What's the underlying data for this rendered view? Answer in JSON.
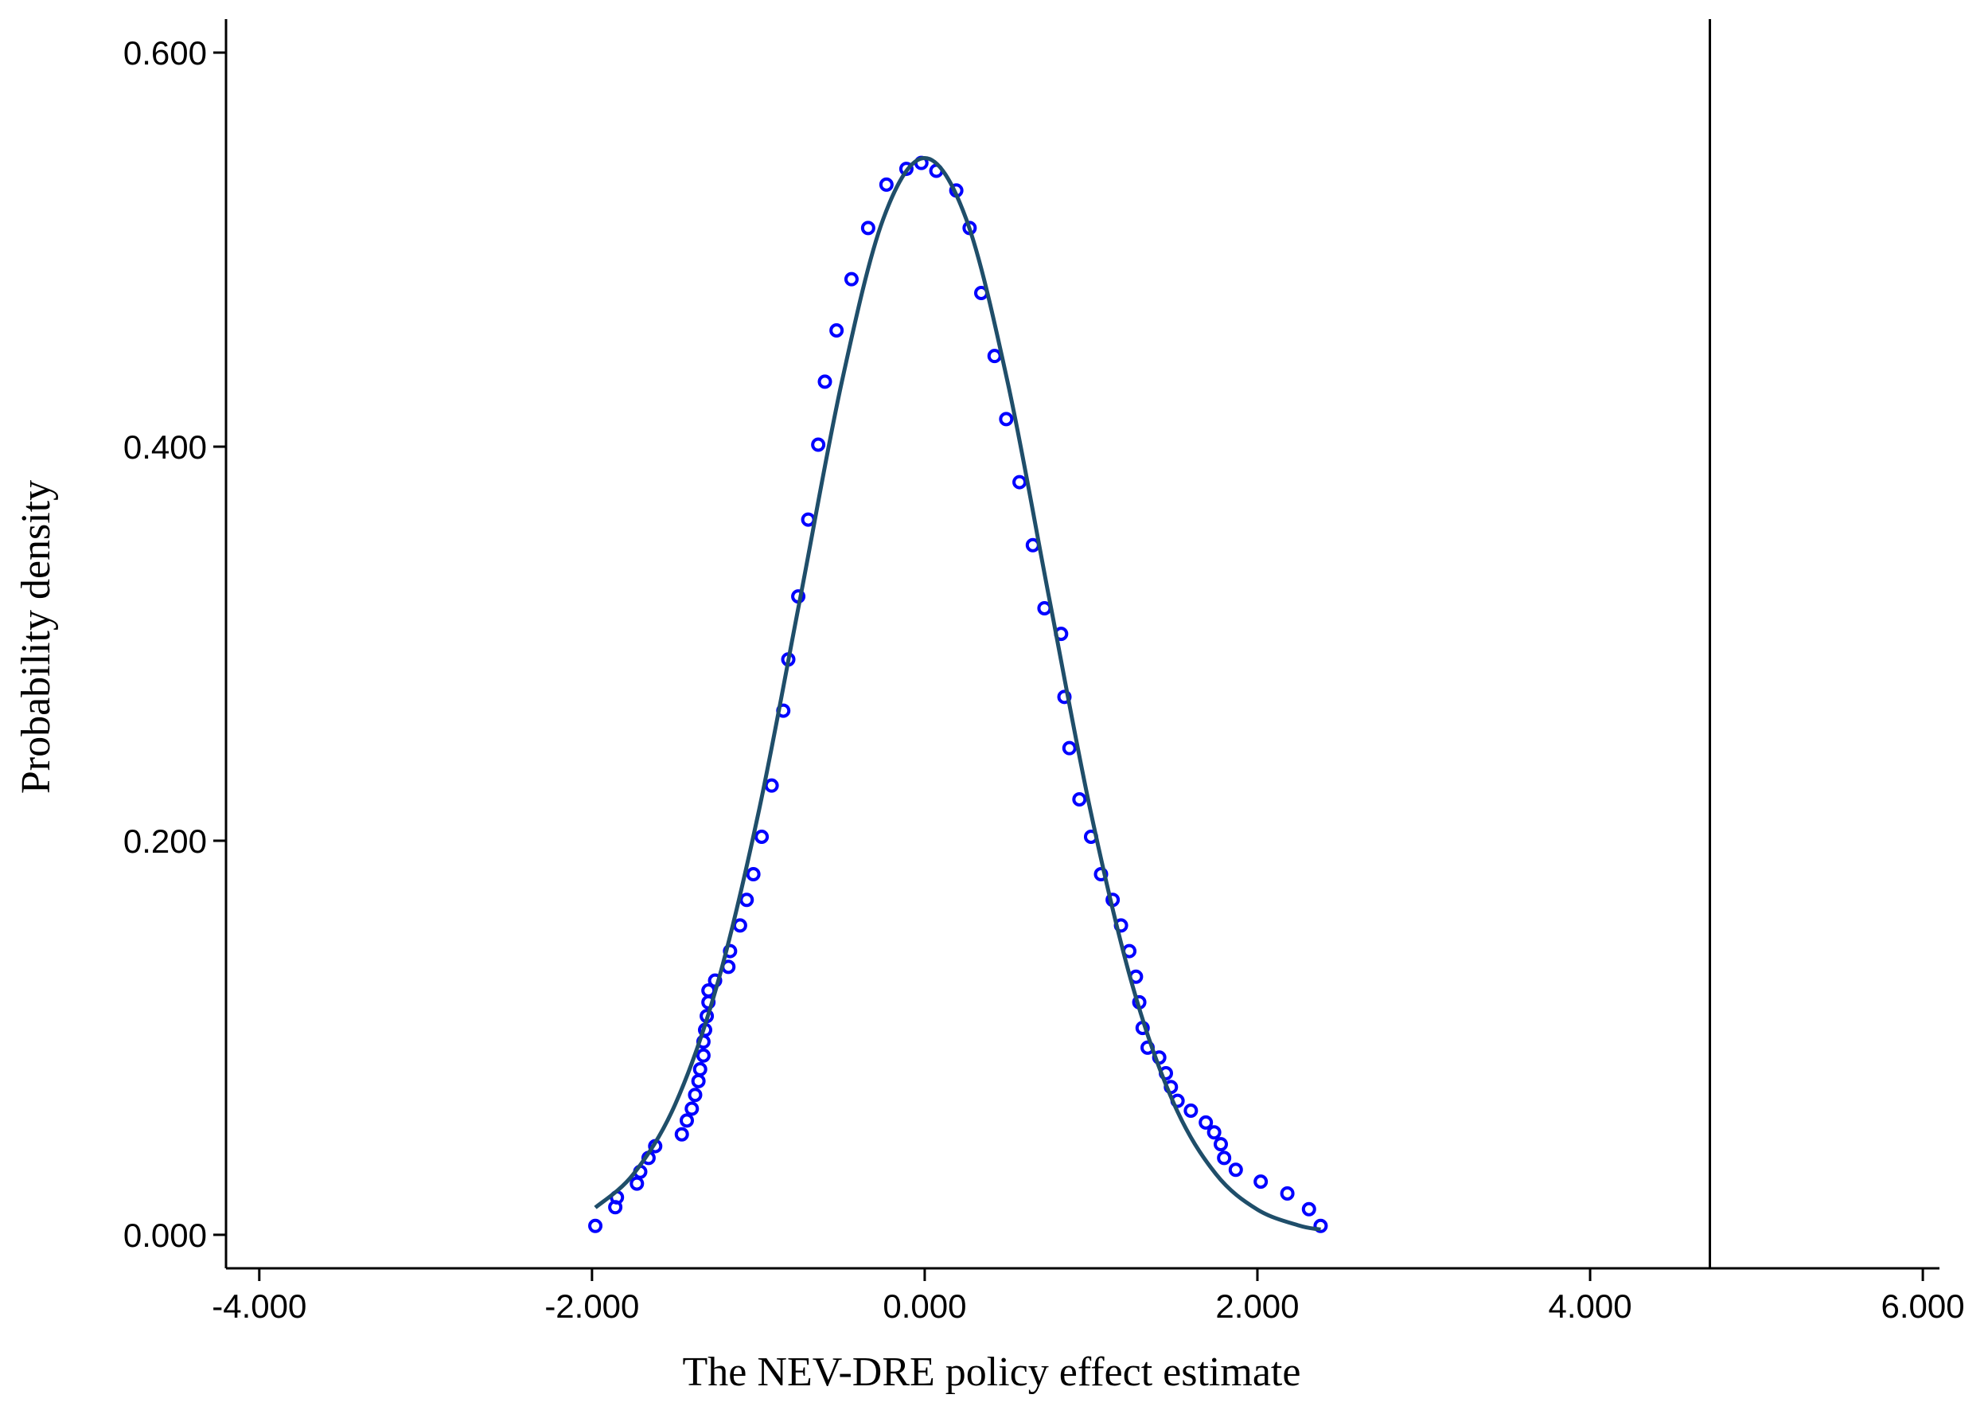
{
  "chart_data": {
    "type": "scatter",
    "xlabel": "The NEV-DRE policy effect estimate",
    "ylabel": "Probability density",
    "xlim": [
      -4.2,
      6.1
    ],
    "ylim": [
      -0.017,
      0.617
    ],
    "xticks": [
      {
        "value": -4,
        "label": "-4.000"
      },
      {
        "value": -2,
        "label": "-2.000"
      },
      {
        "value": 0,
        "label": "0.000"
      },
      {
        "value": 2,
        "label": "2.000"
      },
      {
        "value": 4,
        "label": "4.000"
      },
      {
        "value": 6,
        "label": "6.000"
      }
    ],
    "yticks": [
      {
        "value": 0,
        "label": "0.000"
      },
      {
        "value": 0.2,
        "label": "0.200"
      },
      {
        "value": 0.4,
        "label": "0.400"
      },
      {
        "value": 0.6,
        "label": "0.600"
      }
    ],
    "xline": 4.72,
    "series": [
      {
        "type": "scatter",
        "color": "#0000ff",
        "x": [
          -1.98,
          -1.86,
          -1.85,
          -1.73,
          -1.71,
          -1.66,
          -1.62,
          -1.46,
          -1.43,
          -1.4,
          -1.38,
          -1.36,
          -1.35,
          -1.33,
          -1.33,
          -1.32,
          -1.31,
          -1.3,
          -1.3,
          -1.26,
          -1.18,
          -1.17,
          -1.11,
          -1.07,
          -1.03,
          -0.98,
          -0.92,
          -0.85,
          -0.82,
          -0.76,
          -0.7,
          -0.64,
          -0.6,
          -0.53,
          -0.44,
          -0.34,
          -0.23,
          -0.11,
          -0.02,
          0.07,
          0.19,
          0.27,
          0.34,
          0.42,
          0.49,
          0.57,
          0.65,
          0.72,
          0.82,
          0.84,
          0.87,
          0.93,
          1.0,
          1.06,
          1.13,
          1.18,
          1.23,
          1.27,
          1.29,
          1.31,
          1.34,
          1.41,
          1.45,
          1.48,
          1.52,
          1.6,
          1.69,
          1.74,
          1.78,
          1.8,
          1.87,
          2.02,
          2.18,
          2.31,
          2.38
        ],
        "values": [
          0.0045,
          0.014,
          0.019,
          0.026,
          0.032,
          0.039,
          0.045,
          0.051,
          0.058,
          0.064,
          0.071,
          0.078,
          0.084,
          0.091,
          0.098,
          0.104,
          0.111,
          0.118,
          0.124,
          0.129,
          0.136,
          0.144,
          0.157,
          0.17,
          0.183,
          0.202,
          0.228,
          0.266,
          0.292,
          0.324,
          0.363,
          0.401,
          0.433,
          0.459,
          0.485,
          0.511,
          0.533,
          0.541,
          0.544,
          0.54,
          0.53,
          0.511,
          0.478,
          0.446,
          0.414,
          0.382,
          0.35,
          0.318,
          0.305,
          0.273,
          0.247,
          0.221,
          0.202,
          0.183,
          0.17,
          0.157,
          0.144,
          0.131,
          0.118,
          0.105,
          0.095,
          0.09,
          0.082,
          0.075,
          0.068,
          0.063,
          0.057,
          0.052,
          0.046,
          0.039,
          0.033,
          0.027,
          0.021,
          0.013,
          0.0045
        ]
      },
      {
        "type": "line",
        "color": "#1f4e6a",
        "x": [
          -1.98,
          -1.75,
          -1.5,
          -1.25,
          -1,
          -0.75,
          -0.5,
          -0.25,
          0,
          0.25,
          0.5,
          0.75,
          1,
          1.25,
          1.5,
          1.75,
          2,
          2.25,
          2.38
        ],
        "values": [
          0.0138,
          0.0309,
          0.0662,
          0.1262,
          0.2139,
          0.3224,
          0.4322,
          0.5154,
          0.5465,
          0.5154,
          0.4322,
          0.3224,
          0.2139,
          0.1262,
          0.0662,
          0.0309,
          0.0128,
          0.0047,
          0.0027
        ]
      }
    ]
  }
}
